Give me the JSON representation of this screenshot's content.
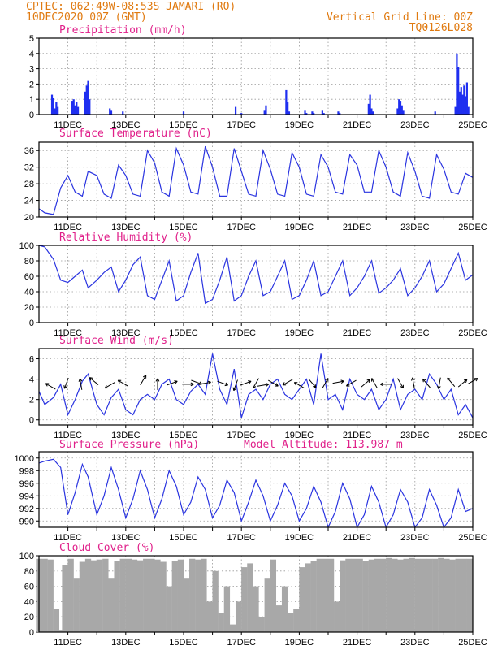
{
  "header": {
    "left_line1": "CPTEC:   062:49W-08:53S  JAMARI (RO)",
    "left_line2": "10DEC2020 00Z (GMT)",
    "right_line1": "Vertical Grid Line: 00Z",
    "right_line2": "TQ0126L028"
  },
  "colors": {
    "header": "#e07a10",
    "title": "#e0208a",
    "line": "#2a34e0",
    "bars": "#1f2ff0",
    "cloud": "#a8a8a8"
  },
  "x_labels": [
    "11DEC",
    "13DEC",
    "15DEC",
    "17DEC",
    "19DEC",
    "21DEC",
    "23DEC",
    "25DEC"
  ],
  "chart_data": [
    {
      "type": "bar",
      "title": "Precipitation (mm/h)",
      "xlim": [
        10,
        25
      ],
      "ylim": [
        0,
        5
      ],
      "yticks": [
        0,
        1,
        2,
        3,
        4,
        5
      ],
      "x": [
        10.45,
        10.5,
        10.55,
        10.6,
        10.65,
        11.15,
        11.2,
        11.25,
        11.3,
        11.35,
        11.6,
        11.65,
        11.7,
        11.75,
        12.45,
        12.5,
        12.9,
        15.0,
        16.8,
        17.0,
        17.8,
        17.85,
        18.55,
        18.6,
        18.65,
        19.2,
        19.25,
        19.45,
        19.5,
        19.8,
        19.85,
        20.35,
        20.4,
        21.4,
        21.45,
        21.5,
        21.55,
        22.4,
        22.45,
        22.5,
        22.55,
        22.6,
        23.7,
        24.4,
        24.45,
        24.5,
        24.55,
        24.6,
        24.65,
        24.7,
        24.75,
        24.8,
        24.85
      ],
      "values": [
        1.3,
        1.1,
        0.4,
        0.8,
        0.5,
        0.9,
        1.0,
        0.6,
        0.8,
        0.5,
        1.5,
        1.9,
        2.2,
        1.0,
        0.4,
        0.3,
        0.2,
        0.2,
        0.5,
        0.1,
        0.3,
        0.6,
        1.6,
        0.8,
        0.2,
        0.3,
        0.1,
        0.2,
        0.1,
        0.3,
        0.1,
        0.2,
        0.1,
        0.7,
        1.3,
        0.4,
        0.2,
        0.4,
        1.0,
        0.9,
        0.6,
        0.3,
        0.2,
        0.5,
        4.0,
        3.1,
        1.5,
        1.8,
        1.3,
        1.9,
        1.2,
        2.1,
        0.5
      ]
    },
    {
      "type": "line",
      "title": "Surface Temperature (nC)",
      "xlim": [
        10,
        25
      ],
      "ylim": [
        20,
        38
      ],
      "yticks": [
        20,
        24,
        28,
        32,
        36
      ],
      "x": [
        10.0,
        10.2,
        10.5,
        10.75,
        11.0,
        11.25,
        11.5,
        11.7,
        12.0,
        12.25,
        12.5,
        12.75,
        13.0,
        13.25,
        13.5,
        13.75,
        14.0,
        14.25,
        14.5,
        14.75,
        15.0,
        15.25,
        15.5,
        15.75,
        16.0,
        16.25,
        16.5,
        16.75,
        17.0,
        17.25,
        17.5,
        17.75,
        18.0,
        18.25,
        18.5,
        18.75,
        19.0,
        19.25,
        19.5,
        19.75,
        20.0,
        20.25,
        20.5,
        20.75,
        21.0,
        21.25,
        21.5,
        21.75,
        22.0,
        22.25,
        22.5,
        22.75,
        23.0,
        23.25,
        23.5,
        23.75,
        24.0,
        24.25,
        24.5,
        24.75,
        25.0
      ],
      "values": [
        22.0,
        21.0,
        20.6,
        27.0,
        30.0,
        26.0,
        25.0,
        31.0,
        30.0,
        25.5,
        24.5,
        32.5,
        30.0,
        25.5,
        25.0,
        36.0,
        33.0,
        26.0,
        25.0,
        36.5,
        32.5,
        26.0,
        25.5,
        37.0,
        32.0,
        25.0,
        25.0,
        36.5,
        31.0,
        25.5,
        25.0,
        36.0,
        31.5,
        25.5,
        25.0,
        35.5,
        32.0,
        25.5,
        25.0,
        35.0,
        32.0,
        26.0,
        25.5,
        35.0,
        32.5,
        26.0,
        26.0,
        36.0,
        32.0,
        26.0,
        25.0,
        35.5,
        31.0,
        25.0,
        24.5,
        35.0,
        31.5,
        26.0,
        25.5,
        30.5,
        29.5
      ]
    },
    {
      "type": "line",
      "title": "Relative Humidity (%)",
      "xlim": [
        10,
        25
      ],
      "ylim": [
        0,
        100
      ],
      "yticks": [
        0,
        20,
        40,
        60,
        80,
        100
      ],
      "x": [
        10.0,
        10.2,
        10.5,
        10.75,
        11.0,
        11.25,
        11.5,
        11.7,
        12.0,
        12.25,
        12.5,
        12.75,
        13.0,
        13.25,
        13.5,
        13.75,
        14.0,
        14.25,
        14.5,
        14.75,
        15.0,
        15.25,
        15.5,
        15.75,
        16.0,
        16.25,
        16.5,
        16.75,
        17.0,
        17.25,
        17.5,
        17.75,
        18.0,
        18.25,
        18.5,
        18.75,
        19.0,
        19.25,
        19.5,
        19.75,
        20.0,
        20.25,
        20.5,
        20.75,
        21.0,
        21.25,
        21.5,
        21.75,
        22.0,
        22.25,
        22.5,
        22.75,
        23.0,
        23.25,
        23.5,
        23.75,
        24.0,
        24.25,
        24.5,
        24.75,
        25.0
      ],
      "values": [
        100,
        98,
        82,
        55,
        52,
        60,
        68,
        45,
        55,
        65,
        72,
        40,
        55,
        75,
        85,
        35,
        30,
        55,
        80,
        28,
        35,
        65,
        90,
        25,
        30,
        55,
        85,
        28,
        35,
        60,
        80,
        35,
        40,
        60,
        80,
        30,
        35,
        55,
        80,
        35,
        40,
        60,
        80,
        35,
        45,
        60,
        80,
        38,
        45,
        55,
        70,
        35,
        45,
        60,
        80,
        40,
        50,
        70,
        90,
        55,
        62
      ]
    },
    {
      "type": "line",
      "title": "Surface Wind (m/s)",
      "xlim": [
        10,
        25
      ],
      "ylim": [
        -0.5,
        7
      ],
      "yticks": [
        0,
        2,
        4,
        6
      ],
      "x": [
        10.0,
        10.2,
        10.5,
        10.75,
        11.0,
        11.25,
        11.5,
        11.7,
        12.0,
        12.25,
        12.5,
        12.75,
        13.0,
        13.25,
        13.5,
        13.75,
        14.0,
        14.25,
        14.5,
        14.75,
        15.0,
        15.25,
        15.5,
        15.75,
        16.0,
        16.25,
        16.5,
        16.75,
        17.0,
        17.25,
        17.5,
        17.75,
        18.0,
        18.25,
        18.5,
        18.75,
        19.0,
        19.25,
        19.5,
        19.75,
        20.0,
        20.25,
        20.5,
        20.75,
        21.0,
        21.25,
        21.5,
        21.75,
        22.0,
        22.25,
        22.5,
        22.75,
        23.0,
        23.25,
        23.5,
        23.75,
        24.0,
        24.25,
        24.5,
        24.75,
        25.0
      ],
      "values": [
        2.8,
        1.5,
        2.2,
        3.5,
        0.5,
        2.0,
        3.8,
        4.5,
        1.5,
        0.5,
        2.2,
        3.0,
        1.0,
        0.5,
        2.0,
        2.5,
        2.0,
        3.5,
        4.0,
        2.0,
        1.5,
        2.8,
        3.5,
        2.5,
        6.5,
        3.0,
        1.5,
        5.0,
        0.2,
        2.5,
        3.0,
        2.0,
        3.5,
        4.0,
        2.5,
        2.0,
        3.0,
        4.0,
        1.5,
        6.5,
        2.0,
        2.5,
        1.0,
        4.0,
        2.5,
        2.0,
        3.0,
        1.0,
        2.0,
        4.0,
        1.0,
        2.5,
        3.0,
        2.0,
        4.5,
        3.5,
        2.0,
        3.0,
        0.5,
        1.5,
        0.2
      ],
      "arrows_x": [
        10.4,
        10.95,
        11.45,
        11.9,
        12.45,
        12.9,
        13.6,
        14.1,
        14.6,
        15.15,
        15.45,
        15.75,
        16.35,
        16.8,
        17.15,
        17.5,
        17.75,
        18.1,
        18.6,
        19.0,
        19.45,
        19.9,
        20.35,
        20.8,
        21.3,
        21.6,
        22.0,
        22.5,
        22.95,
        23.4,
        23.85,
        24.25,
        24.65,
        25.0
      ],
      "arrows_y": [
        3.3,
        3.6,
        3.5,
        3.8,
        3.4,
        3.6,
        3.9,
        3.5,
        3.6,
        3.5,
        3.7,
        3.6,
        3.6,
        3.4,
        3.6,
        3.6,
        3.4,
        3.6,
        3.7,
        3.4,
        3.6,
        3.6,
        3.7,
        3.6,
        3.6,
        3.6,
        3.5,
        3.6,
        3.6,
        3.6,
        3.6,
        3.7,
        3.6,
        3.8
      ],
      "arrows_dir": [
        150,
        250,
        100,
        140,
        210,
        150,
        60,
        90,
        20,
        0,
        340,
        10,
        340,
        250,
        20,
        240,
        10,
        330,
        210,
        150,
        310,
        60,
        10,
        210,
        40,
        120,
        180,
        300,
        100,
        130,
        260,
        130,
        40,
        30
      ]
    },
    {
      "type": "line",
      "title": "Surface Pressure (hPa)",
      "annotation": "Model Altitude: 113.987  m",
      "xlim": [
        10,
        25
      ],
      "ylim": [
        989,
        1001
      ],
      "yticks": [
        990,
        992,
        994,
        996,
        998,
        1000
      ],
      "x": [
        10.0,
        10.2,
        10.5,
        10.75,
        11.0,
        11.25,
        11.5,
        11.7,
        12.0,
        12.25,
        12.5,
        12.75,
        13.0,
        13.25,
        13.5,
        13.75,
        14.0,
        14.25,
        14.5,
        14.75,
        15.0,
        15.25,
        15.5,
        15.75,
        16.0,
        16.25,
        16.5,
        16.75,
        17.0,
        17.25,
        17.5,
        17.75,
        18.0,
        18.25,
        18.5,
        18.75,
        19.0,
        19.25,
        19.5,
        19.75,
        20.0,
        20.25,
        20.5,
        20.75,
        21.0,
        21.25,
        21.5,
        21.75,
        22.0,
        22.25,
        22.5,
        22.75,
        23.0,
        23.25,
        23.5,
        23.75,
        24.0,
        24.25,
        24.5,
        24.75,
        25.0
      ],
      "values": [
        999.2,
        999.5,
        999.8,
        998.5,
        991.0,
        994.5,
        999.0,
        997.0,
        991.0,
        994.0,
        998.5,
        995.0,
        990.5,
        993.5,
        998.0,
        995.0,
        990.5,
        993.5,
        998.0,
        995.5,
        991.0,
        993.0,
        997.0,
        995.0,
        990.5,
        992.5,
        996.5,
        994.5,
        990.0,
        993.0,
        996.5,
        994.0,
        990.0,
        992.5,
        996.0,
        994.0,
        990.0,
        992.0,
        995.5,
        993.0,
        989.0,
        991.5,
        996.0,
        993.5,
        989.0,
        991.0,
        995.5,
        993.0,
        989.0,
        991.0,
        995.0,
        993.0,
        989.0,
        990.5,
        995.0,
        992.5,
        989.0,
        990.5,
        995.0,
        991.5,
        992.0
      ]
    },
    {
      "type": "bar",
      "title": "Cloud Cover (%)",
      "xlim": [
        10,
        25
      ],
      "ylim": [
        0,
        100
      ],
      "yticks": [
        0,
        20,
        40,
        60,
        80,
        100
      ],
      "x": [
        10.0,
        10.2,
        10.4,
        10.6,
        10.75,
        10.9,
        11.1,
        11.3,
        11.5,
        11.7,
        11.9,
        12.1,
        12.3,
        12.5,
        12.7,
        12.9,
        13.1,
        13.3,
        13.5,
        13.7,
        13.9,
        14.1,
        14.3,
        14.5,
        14.7,
        14.9,
        15.1,
        15.3,
        15.5,
        15.7,
        15.9,
        16.1,
        16.3,
        16.5,
        16.7,
        16.9,
        17.1,
        17.3,
        17.5,
        17.7,
        17.9,
        18.1,
        18.3,
        18.5,
        18.7,
        18.9,
        19.1,
        19.3,
        19.5,
        19.7,
        19.9,
        20.1,
        20.3,
        20.5,
        20.7,
        20.9,
        21.1,
        21.3,
        21.5,
        21.7,
        21.9,
        22.1,
        22.3,
        22.5,
        22.7,
        22.9,
        23.1,
        23.3,
        23.5,
        23.7,
        23.9,
        24.1,
        24.3,
        24.5,
        24.7,
        24.9
      ],
      "values": [
        96,
        96,
        95,
        30,
        2,
        88,
        96,
        70,
        92,
        96,
        94,
        95,
        96,
        70,
        93,
        96,
        96,
        95,
        94,
        96,
        96,
        95,
        92,
        60,
        93,
        95,
        70,
        96,
        95,
        96,
        40,
        80,
        25,
        60,
        10,
        40,
        85,
        90,
        60,
        20,
        70,
        95,
        35,
        60,
        25,
        30,
        85,
        90,
        93,
        96,
        96,
        96,
        40,
        94,
        96,
        96,
        96,
        93,
        95,
        96,
        96,
        97,
        96,
        95,
        96,
        97,
        96,
        96,
        96,
        96,
        97,
        96,
        95,
        96,
        96,
        96
      ]
    }
  ]
}
